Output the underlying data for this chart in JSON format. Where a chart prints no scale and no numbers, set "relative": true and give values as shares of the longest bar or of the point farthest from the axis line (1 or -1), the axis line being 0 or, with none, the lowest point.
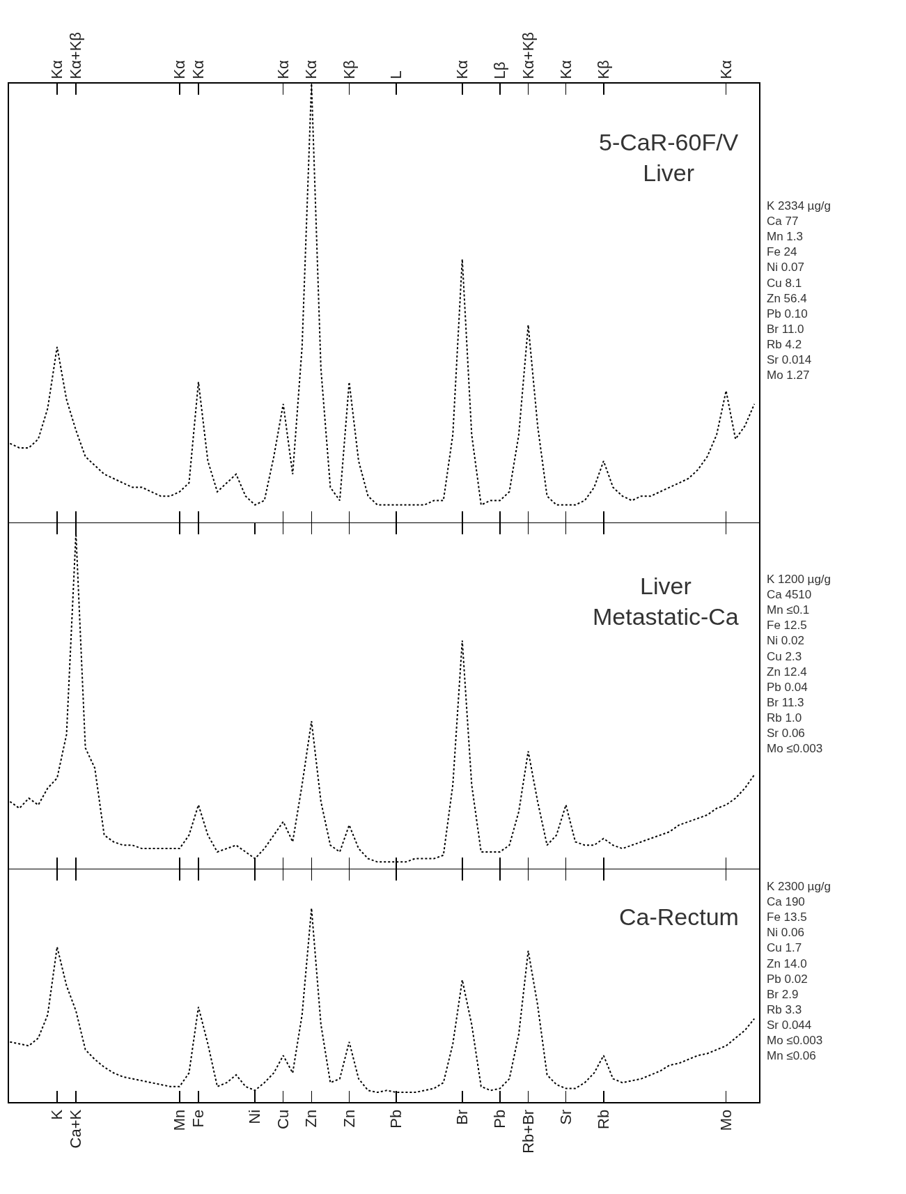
{
  "chart_data": [
    {
      "type": "line",
      "relative": true,
      "title": "5-CaR-60F/V\nLiver",
      "line_style": "dotted",
      "grid": false,
      "annotations": [
        "K 2334 µg/g\nCa 77\nMn 1.3\nFe 24\nNi 0.07\nCu 8.1\nZn 56.4\nPb 0.10\nBr 11.0\nRb 4.2\nSr 0.014\nMo 1.27"
      ],
      "categories": [
        null,
        null,
        null,
        null,
        null,
        "Kα",
        null,
        "Kα+Kβ",
        null,
        null,
        null,
        null,
        null,
        null,
        null,
        null,
        null,
        null,
        "Kα",
        null,
        "Kα",
        null,
        null,
        null,
        null,
        null,
        null,
        null,
        null,
        "Kα",
        null,
        null,
        "Kα",
        null,
        null,
        null,
        "Kβ",
        null,
        null,
        null,
        null,
        "L",
        null,
        null,
        null,
        null,
        null,
        null,
        "Kα",
        null,
        null,
        null,
        "Lβ",
        null,
        null,
        "Kα+Kβ",
        null,
        null,
        null,
        "Kα",
        null,
        null,
        null,
        "Kβ",
        null,
        null,
        null,
        null,
        null,
        null,
        null,
        null,
        null,
        null,
        null,
        null,
        "Kα",
        null,
        null,
        null
      ],
      "series": [
        {
          "color": "#000000",
          "values": [
            0.18,
            0.17,
            0.17,
            0.19,
            0.26,
            0.4,
            0.28,
            0.21,
            0.15,
            0.13,
            0.11,
            0.1,
            0.09,
            0.08,
            0.08,
            0.07,
            0.06,
            0.06,
            0.07,
            0.09,
            0.32,
            0.14,
            0.07,
            0.09,
            0.11,
            0.06,
            0.04,
            0.05,
            0.15,
            0.27,
            0.11,
            0.4,
            1,
            0.35,
            0.08,
            0.05,
            0.32,
            0.14,
            0.06,
            0.04,
            0.04,
            0.04,
            0.04,
            0.04,
            0.04,
            0.05,
            0.05,
            0.2,
            0.6,
            0.2,
            0.04,
            0.05,
            0.05,
            0.07,
            0.2,
            0.45,
            0.22,
            0.06,
            0.04,
            0.04,
            0.04,
            0.05,
            0.08,
            0.14,
            0.08,
            0.06,
            0.05,
            0.06,
            0.06,
            0.07,
            0.08,
            0.09,
            0.1,
            0.12,
            0.15,
            0.2,
            0.3,
            0.19,
            0.22,
            0.27
          ]
        }
      ]
    },
    {
      "type": "line",
      "relative": true,
      "title": "Liver\nMetastatic-Ca",
      "line_style": "dotted",
      "grid": false,
      "tick_labels": false,
      "annotations": [
        "K 1200 µg/g\nCa 4510\nMn ≤0.1\nFe 12.5\nNi 0.02\nCu 2.3\nZn 12.4\nPb 0.04\nBr 11.3\nRb 1.0\nSr 0.06\nMo ≤0.003"
      ],
      "categories": [
        null,
        null,
        null,
        null,
        null,
        null,
        null,
        null,
        null,
        null,
        null,
        null,
        null,
        null,
        null,
        null,
        null,
        null,
        null,
        null,
        null,
        null,
        null,
        null,
        null,
        null,
        null,
        null,
        null,
        null,
        null,
        null,
        null,
        null,
        null,
        null,
        null,
        null,
        null,
        null,
        null,
        null,
        null,
        null,
        null,
        null,
        null,
        null,
        null,
        null,
        null,
        null,
        null,
        null,
        null,
        null,
        null,
        null,
        null,
        null,
        null,
        null,
        null,
        null,
        null,
        null,
        null,
        null,
        null,
        null,
        null,
        null,
        null,
        null,
        null,
        null,
        null,
        null,
        null,
        null
      ],
      "series": [
        {
          "color": "#000000",
          "values": [
            0.2,
            0.18,
            0.21,
            0.19,
            0.24,
            0.27,
            0.4,
            1,
            0.36,
            0.3,
            0.1,
            0.08,
            0.07,
            0.07,
            0.06,
            0.06,
            0.06,
            0.06,
            0.06,
            0.1,
            0.19,
            0.1,
            0.05,
            0.06,
            0.07,
            0.05,
            0.03,
            0.06,
            0.1,
            0.14,
            0.08,
            0.25,
            0.44,
            0.2,
            0.07,
            0.05,
            0.13,
            0.06,
            0.03,
            0.02,
            0.02,
            0.02,
            0.02,
            0.03,
            0.03,
            0.03,
            0.04,
            0.25,
            0.68,
            0.25,
            0.05,
            0.05,
            0.05,
            0.07,
            0.17,
            0.35,
            0.2,
            0.07,
            0.1,
            0.19,
            0.08,
            0.07,
            0.07,
            0.09,
            0.07,
            0.06,
            0.07,
            0.08,
            0.09,
            0.1,
            0.11,
            0.13,
            0.14,
            0.15,
            0.16,
            0.18,
            0.19,
            0.21,
            0.24,
            0.28
          ]
        }
      ]
    },
    {
      "type": "line",
      "relative": true,
      "title": "Ca-Rectum",
      "line_style": "dotted",
      "grid": false,
      "tick_labels": "x",
      "annotations": [
        "K 2300 µg/g\nCa 190\nFe 13.5\nNi 0.06\nCu 1.7\nZn 14.0\nPb 0.02\nBr 2.9\nRb 3.3\nSr 0.044\nMo ≤0.003\nMn ≤0.06"
      ],
      "categories": [
        null,
        null,
        null,
        null,
        null,
        "K",
        null,
        "Ca+K",
        null,
        null,
        null,
        null,
        null,
        null,
        null,
        null,
        null,
        null,
        "Mn",
        null,
        "Fe",
        null,
        null,
        null,
        null,
        null,
        "Ni",
        null,
        null,
        "Cu",
        null,
        null,
        "Zn",
        null,
        null,
        null,
        "Zn",
        null,
        null,
        null,
        null,
        "Pb",
        null,
        null,
        null,
        null,
        null,
        null,
        "Br",
        null,
        null,
        null,
        "Pb",
        null,
        null,
        "Rb+Br",
        null,
        null,
        null,
        "Sr",
        null,
        null,
        null,
        "Rb",
        null,
        null,
        null,
        null,
        null,
        null,
        null,
        null,
        null,
        null,
        null,
        null,
        "Mo",
        null,
        null,
        null
      ],
      "series": [
        {
          "color": "#000000",
          "values": [
            0.31,
            0.3,
            0.29,
            0.33,
            0.45,
            0.8,
            0.6,
            0.47,
            0.27,
            0.22,
            0.18,
            0.15,
            0.13,
            0.12,
            0.11,
            0.1,
            0.09,
            0.08,
            0.08,
            0.15,
            0.49,
            0.3,
            0.08,
            0.1,
            0.14,
            0.08,
            0.06,
            0.1,
            0.15,
            0.24,
            0.15,
            0.45,
            1,
            0.4,
            0.1,
            0.12,
            0.31,
            0.12,
            0.06,
            0.05,
            0.06,
            0.05,
            0.05,
            0.05,
            0.06,
            0.07,
            0.1,
            0.3,
            0.63,
            0.4,
            0.08,
            0.06,
            0.07,
            0.12,
            0.35,
            0.78,
            0.5,
            0.14,
            0.09,
            0.07,
            0.07,
            0.1,
            0.15,
            0.24,
            0.12,
            0.1,
            0.11,
            0.12,
            0.14,
            0.16,
            0.19,
            0.2,
            0.22,
            0.24,
            0.25,
            0.27,
            0.29,
            0.33,
            0.37,
            0.43
          ]
        }
      ]
    }
  ]
}
